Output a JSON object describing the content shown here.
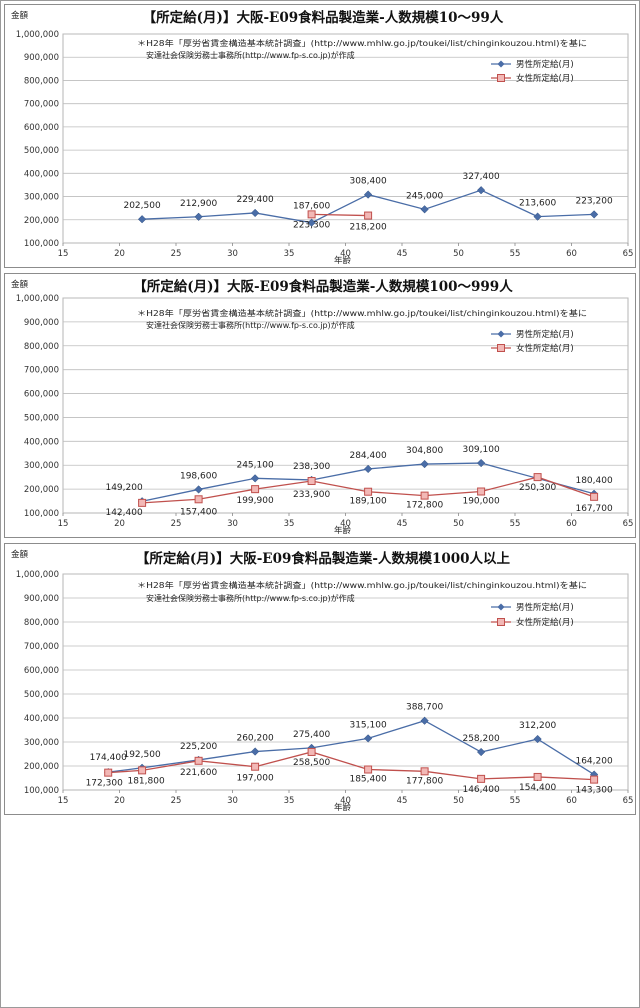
{
  "chart_data": [
    {
      "type": "line",
      "title": "【所定給(月)】大阪-E09食料品製造業-人数規模10～99人",
      "source_note": [
        "＊H28年「厚労省賃金構造基本統計調査」(http://www.mhlw.go.jp/toukei/list/chinginkouzou.html)を基に",
        "安達社会保険労務士事務所(http://www.fp-s.co.jp)が作成"
      ],
      "ylabel": "金額",
      "xlabel": "年齢",
      "xlim": [
        15,
        65
      ],
      "ylim": [
        100000,
        1000000
      ],
      "x_ticks": [
        "15",
        "20",
        "25",
        "30",
        "35",
        "40",
        "45",
        "50",
        "55",
        "60",
        "65"
      ],
      "y_ticks": [
        "100,000",
        "200,000",
        "300,000",
        "400,000",
        "500,000",
        "600,000",
        "700,000",
        "800,000",
        "900,000",
        "1,000,000"
      ],
      "legend_position": "top-right",
      "grid": true,
      "series": [
        {
          "name": "男性所定給(月)",
          "color": "#4a6da7",
          "marker": "diamond",
          "points": [
            {
              "x": 22,
              "y": 202500,
              "label": "202,500"
            },
            {
              "x": 27,
              "y": 212900,
              "label": "212,900"
            },
            {
              "x": 32,
              "y": 229400,
              "label": "229,400"
            },
            {
              "x": 37,
              "y": 187600,
              "label": "187,600"
            },
            {
              "x": 42,
              "y": 308400,
              "label": "308,400"
            },
            {
              "x": 47,
              "y": 245000,
              "label": "245,000"
            },
            {
              "x": 52,
              "y": 327400,
              "label": "327,400"
            },
            {
              "x": 57,
              "y": 213600,
              "label": "213,600"
            },
            {
              "x": 62,
              "y": 223200,
              "label": "223,200"
            }
          ]
        },
        {
          "name": "女性所定給(月)",
          "color": "#c0504d",
          "marker": "square",
          "points": [
            {
              "x": 37,
              "y": 223300,
              "label": "223,300"
            },
            {
              "x": 42,
              "y": 218200,
              "label": "218,200"
            }
          ]
        }
      ]
    },
    {
      "type": "line",
      "title": "【所定給(月)】大阪-E09食料品製造業-人数規模100～999人",
      "source_note": [
        "＊H28年「厚労省賃金構造基本統計調査」(http://www.mhlw.go.jp/toukei/list/chinginkouzou.html)を基に",
        "安達社会保険労務士事務所(http://www.fp-s.co.jp)が作成"
      ],
      "ylabel": "金額",
      "xlabel": "年齢",
      "xlim": [
        15,
        65
      ],
      "ylim": [
        100000,
        1000000
      ],
      "x_ticks": [
        "15",
        "20",
        "25",
        "30",
        "35",
        "40",
        "45",
        "50",
        "55",
        "60",
        "65"
      ],
      "y_ticks": [
        "100,000",
        "200,000",
        "300,000",
        "400,000",
        "500,000",
        "600,000",
        "700,000",
        "800,000",
        "900,000",
        "1,000,000"
      ],
      "legend_position": "top-right",
      "grid": true,
      "series": [
        {
          "name": "男性所定給(月)",
          "color": "#4a6da7",
          "marker": "diamond",
          "points": [
            {
              "x": 22,
              "y": 149200,
              "label": "149,200"
            },
            {
              "x": 27,
              "y": 198600,
              "label": "198,600"
            },
            {
              "x": 32,
              "y": 245100,
              "label": "245,100"
            },
            {
              "x": 37,
              "y": 238300,
              "label": "238,300"
            },
            {
              "x": 42,
              "y": 284400,
              "label": "284,400"
            },
            {
              "x": 47,
              "y": 304800,
              "label": "304,800"
            },
            {
              "x": 52,
              "y": 309100,
              "label": "309,100"
            },
            {
              "x": 62,
              "y": 180400,
              "label": "180,400"
            }
          ]
        },
        {
          "name": "女性所定給(月)",
          "color": "#c0504d",
          "marker": "square",
          "points": [
            {
              "x": 22,
              "y": 142400,
              "label": "142,400"
            },
            {
              "x": 27,
              "y": 157400,
              "label": "157,400"
            },
            {
              "x": 32,
              "y": 199900,
              "label": "199,900"
            },
            {
              "x": 37,
              "y": 233900,
              "label": "233,900"
            },
            {
              "x": 42,
              "y": 189100,
              "label": "189,100"
            },
            {
              "x": 47,
              "y": 172800,
              "label": "172,800"
            },
            {
              "x": 52,
              "y": 190000,
              "label": "190,000"
            },
            {
              "x": 57,
              "y": 250300,
              "label": "250,300"
            },
            {
              "x": 62,
              "y": 167700,
              "label": "167,700"
            }
          ]
        }
      ]
    },
    {
      "type": "line",
      "title": "【所定給(月)】大阪-E09食料品製造業-人数規模1000人以上",
      "source_note": [
        "＊H28年「厚労省賃金構造基本統計調査」(http://www.mhlw.go.jp/toukei/list/chinginkouzou.html)を基に",
        "安達社会保険労務士事務所(http://www.fp-s.co.jp)が作成"
      ],
      "ylabel": "金額",
      "xlabel": "年齢",
      "xlim": [
        15,
        65
      ],
      "ylim": [
        100000,
        1000000
      ],
      "x_ticks": [
        "15",
        "20",
        "25",
        "30",
        "35",
        "40",
        "45",
        "50",
        "55",
        "60",
        "65"
      ],
      "y_ticks": [
        "100,000",
        "200,000",
        "300,000",
        "400,000",
        "500,000",
        "600,000",
        "700,000",
        "800,000",
        "900,000",
        "1,000,000"
      ],
      "legend_position": "top-right",
      "grid": true,
      "series": [
        {
          "name": "男性所定給(月)",
          "color": "#4a6da7",
          "marker": "diamond",
          "points": [
            {
              "x": 19,
              "y": 174400,
              "label": "174,400"
            },
            {
              "x": 22,
              "y": 192500,
              "label": "192,500"
            },
            {
              "x": 27,
              "y": 225200,
              "label": "225,200"
            },
            {
              "x": 32,
              "y": 260200,
              "label": "260,200"
            },
            {
              "x": 37,
              "y": 275400,
              "label": "275,400"
            },
            {
              "x": 42,
              "y": 315100,
              "label": "315,100"
            },
            {
              "x": 47,
              "y": 388700,
              "label": "388,700"
            },
            {
              "x": 52,
              "y": 258200,
              "label": "258,200"
            },
            {
              "x": 57,
              "y": 312200,
              "label": "312,200"
            },
            {
              "x": 62,
              "y": 164200,
              "label": "164,200"
            }
          ]
        },
        {
          "name": "女性所定給(月)",
          "color": "#c0504d",
          "marker": "square",
          "points": [
            {
              "x": 19,
              "y": 172300,
              "label": "172,300"
            },
            {
              "x": 22,
              "y": 181800,
              "label": "181,800"
            },
            {
              "x": 27,
              "y": 221600,
              "label": "221,600"
            },
            {
              "x": 32,
              "y": 197000,
              "label": "197,000"
            },
            {
              "x": 37,
              "y": 258500,
              "label": "258,500"
            },
            {
              "x": 42,
              "y": 185400,
              "label": "185,400"
            },
            {
              "x": 47,
              "y": 177800,
              "label": "177,800"
            },
            {
              "x": 52,
              "y": 146400,
              "label": "146,400"
            },
            {
              "x": 57,
              "y": 154400,
              "label": "154,400"
            },
            {
              "x": 62,
              "y": 143300,
              "label": "143,300"
            }
          ]
        }
      ]
    }
  ]
}
